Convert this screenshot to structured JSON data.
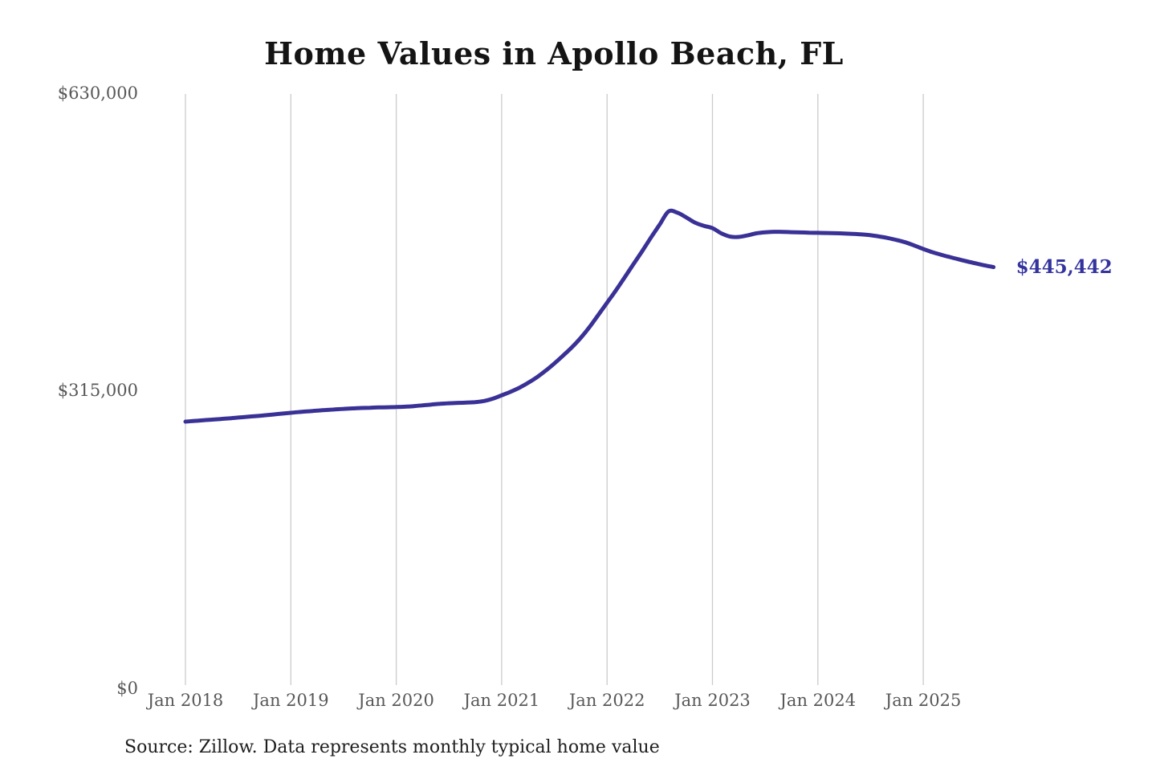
{
  "title": "Home Values in Apollo Beach, FL",
  "source_note": "Source: Zillow. Data represents monthly typical home value",
  "colors": {
    "background": "#ffffff",
    "line": "#3a3196",
    "end_label": "#34339e",
    "gridline": "#cbcbcb",
    "axis_text": "#585858",
    "title_text": "#141414",
    "source_text": "#1e1e1e"
  },
  "chart_data": {
    "type": "line",
    "title": "Home Values in Apollo Beach, FL",
    "xlabel": "",
    "ylabel": "",
    "ylim": [
      0,
      630000
    ],
    "grid": "vertical-only",
    "legend": "none",
    "y_ticks": [
      {
        "label": "$630,000",
        "value": 630000
      },
      {
        "label": "$315,000",
        "value": 315000
      },
      {
        "label": "$0",
        "value": 0
      }
    ],
    "x_ticks": [
      "Jan 2018",
      "Jan 2019",
      "Jan 2020",
      "Jan 2021",
      "Jan 2022",
      "Jan 2023",
      "Jan 2024",
      "Jan 2025"
    ],
    "x_start": "Jan 2018",
    "x_end": "Sep 2025",
    "interval": "monthly",
    "annotation": {
      "text": "$445,442",
      "value": 445442,
      "position": "line-end"
    },
    "series": [
      {
        "name": "Typical home value",
        "values": [
          280800,
          281500,
          282200,
          282900,
          283600,
          284300,
          285100,
          285900,
          286700,
          287500,
          288400,
          289300,
          290200,
          291000,
          291800,
          292500,
          293200,
          293800,
          294400,
          294900,
          295300,
          295600,
          295900,
          296100,
          296300,
          296700,
          297300,
          298100,
          299000,
          299800,
          300400,
          300800,
          301100,
          301600,
          302800,
          305200,
          308800,
          312500,
          316800,
          322000,
          328000,
          335000,
          342800,
          351200,
          360000,
          370000,
          381500,
          394500,
          407500,
          420500,
          434500,
          448500,
          462500,
          477000,
          491000,
          504800,
          503500,
          498500,
          493000,
          489500,
          487000,
          481500,
          478000,
          477600,
          479300,
          481500,
          482600,
          483100,
          483000,
          482700,
          482400,
          482200,
          482000,
          481800,
          481600,
          481300,
          480900,
          480300,
          479400,
          478100,
          476400,
          474300,
          471800,
          468400,
          464800,
          461500,
          458700,
          456200,
          453800,
          451500,
          449400,
          447300,
          445442
        ]
      }
    ]
  }
}
